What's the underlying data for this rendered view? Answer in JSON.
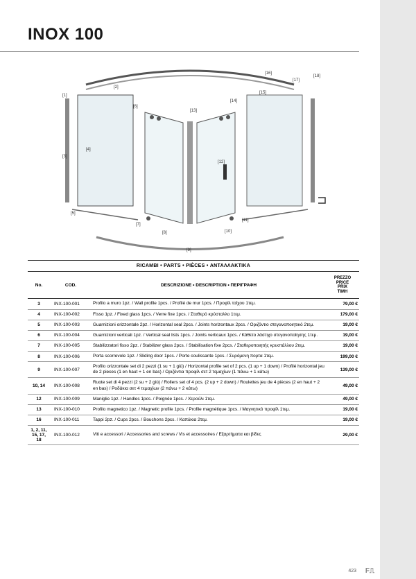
{
  "title": "INOX 100",
  "table": {
    "header_label": "RICAMBI • PARTS • PIÈCES • ΑΝΤΑΛΛΑΚΤΙΚΑ",
    "columns": {
      "no": "No.",
      "cod": "COD.",
      "desc": "DESCRIZIONE • DESCRIPTION • ΠΕΡΙΓΡΑΦΗ",
      "price": "PREZZO\nPRICE\nPRIX\nTIMH"
    },
    "rows": [
      {
        "no": "3",
        "cod": "INX-100-001",
        "desc": "Profilo a muro 1pz. / Wall profile 1pcs. / Profilé de mur 1pcs. / Προφίλ τοίχου 1τεμ.",
        "price": "79,00 €"
      },
      {
        "no": "4",
        "cod": "INX-100-002",
        "desc": "Fisso 1pz. / Fixed glass 1pcs. / Verre fixe 1pcs. / Σταθερό κρύσταλλο 1τεμ.",
        "price": "179,00 €"
      },
      {
        "no": "5",
        "cod": "INX-100-003",
        "desc": "Guarnizioni orizzontale 2pz. / Horizontal seal 2pcs. / Joints horizontaux 2pcs. / Οριζόντιο στεγανοποιητικό 2τεμ.",
        "price": "19,00 €"
      },
      {
        "no": "6",
        "cod": "INX-100-004",
        "desc": "Guarnizioni verticali 1pz. / Vertical seal lists 1pcs. / Joints verticaux 1pcs. / Κάθετο λάστιχο στεγανοποίησης 1τεμ.",
        "price": "19,00 €"
      },
      {
        "no": "7",
        "cod": "INX-100-005",
        "desc": "Stabilizzatori fisso 2pz. / Stabilizer glass 2pcs. / Stabilisation fixe 2pcs. / Σταθεροποιητής κρυστάλλου 2τεμ.",
        "price": "19,00 €"
      },
      {
        "no": "8",
        "cod": "INX-100-006",
        "desc": "Porta scorrevole 1pz. / Sliding door 1pcs. / Porte coulissante 1pcs. / Συρόμενη πορτα 1τεμ.",
        "price": "199,00 €"
      },
      {
        "no": "9",
        "cod": "INX-100-007",
        "desc": "Profilo orizzontale set di 2 pezzi (1 su + 1 giù) / Horizontal profile set of 2 pcs. (1 up + 1 down) / Profilé horizontal jeu de 2 pieces (1 en haut + 1 en bas) / Οριζόντια προφίλ σετ 2 τεμαχίων (1 πάνω + 1 κάτω)",
        "price": "139,00 €"
      },
      {
        "no": "10, 14",
        "cod": "INX-100-008",
        "desc": "Ruote set di 4 pezzi (2 su + 2 giù) / Rollers set of 4 pcs. (2 up + 2 down) / Roulettes jeu de 4 pièces (2 en haut + 2 en bas) / Ροδάκια σετ 4 τεμαχίων (2 πάνω + 2 κάτω)",
        "price": "49,00 €"
      },
      {
        "no": "12",
        "cod": "INX-100-009",
        "desc": "Maniglie 1pz. / Handles 1pcs. / Poignée 1pcs. / Χερούλι 1τεμ.",
        "price": "49,00 €"
      },
      {
        "no": "13",
        "cod": "INX-100-010",
        "desc": "Profilo magnetico 1pz. / Magnetic profile 1pcs. / Profile magnétique 1pcs. / Μαγνητικό προφίλ 1τεμ.",
        "price": "19,00 €"
      },
      {
        "no": "16",
        "cod": "INX-100-011",
        "desc": "Tappi 2pz. / Cups 2pcs. / Bouchons 2pcs. / Καπάκια 2τεμ.",
        "price": "19,00 €"
      },
      {
        "no": "1, 2, 11, 15, 17, 18",
        "cod": "INX-100-012",
        "desc": "Viti e accessori / Accessories and screws / Vis et accessoires / Εξαρτήματα και βίδες",
        "price": "29,00 €"
      }
    ]
  },
  "diagram": {
    "callouts": [
      "[1]",
      "[2]",
      "[3]",
      "[4]",
      "[5]",
      "[6]",
      "[7]",
      "[8]",
      "[9]",
      "[10]",
      "[11]",
      "[12]",
      "[13]",
      "[14]",
      "[15]",
      "[16]",
      "[17]",
      "[18]"
    ]
  },
  "page_number": "423",
  "colors": {
    "page_bg": "#ffffff",
    "body_bg": "#e8e8e8",
    "line": "#333333",
    "text": "#1a1a1a"
  }
}
